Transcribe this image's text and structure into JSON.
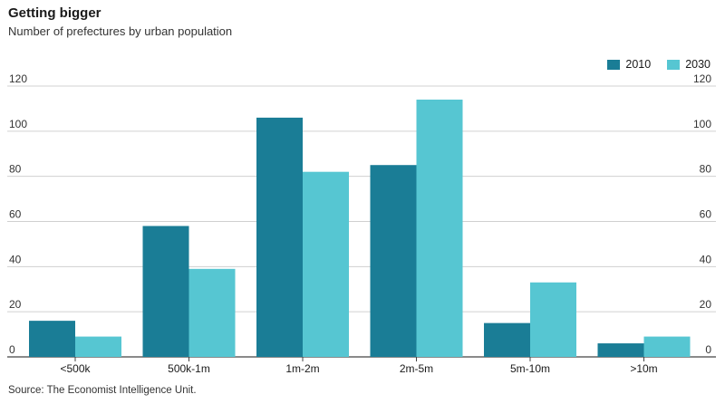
{
  "header": {
    "title": "Getting bigger",
    "subtitle": "Number of prefectures by urban population"
  },
  "legend": {
    "items": [
      {
        "label": "2010",
        "color": "#1a7d96"
      },
      {
        "label": "2030",
        "color": "#56c6d2"
      }
    ]
  },
  "source": "Source: The Economist Intelligence Unit.",
  "chart_data": {
    "type": "bar",
    "title": "Getting bigger",
    "subtitle": "Number of prefectures by urban population",
    "categories": [
      "<500k",
      "500k-1m",
      "1m-2m",
      "2m-5m",
      "5m-10m",
      ">10m"
    ],
    "series": [
      {
        "name": "2010",
        "color": "#1a7d96",
        "values": [
          16,
          58,
          106,
          85,
          15,
          6
        ]
      },
      {
        "name": "2030",
        "color": "#56c6d2",
        "values": [
          9,
          39,
          82,
          114,
          33,
          9
        ]
      }
    ],
    "ylim": [
      0,
      120
    ],
    "yticks": [
      0,
      20,
      40,
      60,
      80,
      100,
      120
    ],
    "grid": true,
    "legend_position": "top-right",
    "xlabel": "",
    "ylabel": ""
  }
}
